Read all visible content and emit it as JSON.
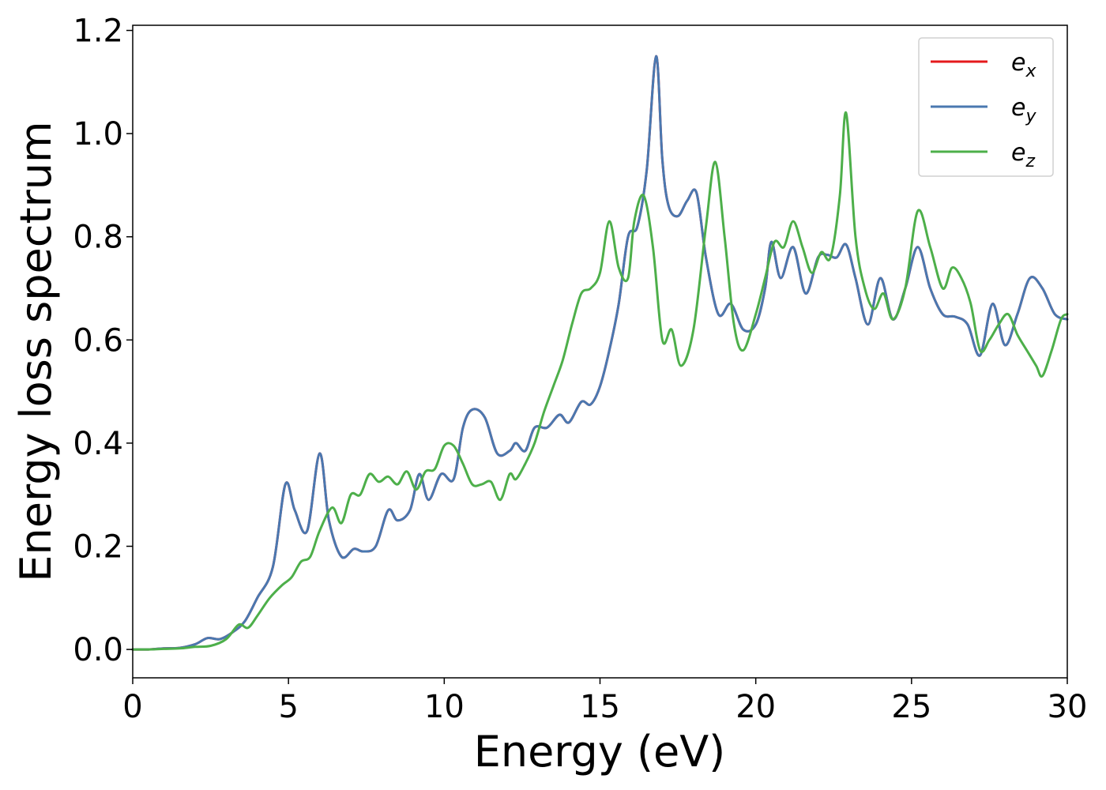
{
  "chart_data": {
    "type": "line",
    "xlabel": "Energy (eV)",
    "ylabel": "Energy loss spectrum",
    "xlim": [
      0,
      30
    ],
    "ylim": [
      -0.055,
      1.21
    ],
    "xticks": [
      0,
      5,
      10,
      15,
      20,
      25,
      30
    ],
    "yticks": [
      0.0,
      0.2,
      0.4,
      0.6,
      0.8,
      1.0,
      1.2
    ],
    "xtick_labels": [
      "0",
      "5",
      "10",
      "15",
      "20",
      "25",
      "30"
    ],
    "ytick_labels": [
      "0.0",
      "0.2",
      "0.4",
      "0.6",
      "0.8",
      "1.0",
      "1.2"
    ],
    "grid": false,
    "legend_position": "top-right",
    "series": [
      {
        "name": "e",
        "subscript": "x",
        "color": "#e41a1c",
        "x": [
          0,
          0.5,
          1.0,
          1.5,
          2.0,
          2.4,
          2.8,
          3.2,
          3.6,
          4.0,
          4.5,
          4.9,
          5.2,
          5.6,
          6.0,
          6.3,
          6.7,
          7.1,
          7.4,
          7.8,
          8.2,
          8.5,
          8.9,
          9.2,
          9.5,
          9.9,
          10.3,
          10.6,
          10.9,
          11.3,
          11.7,
          12.1,
          12.3,
          12.6,
          12.9,
          13.3,
          13.7,
          14.0,
          14.4,
          14.7,
          15.0,
          15.3,
          15.6,
          15.9,
          16.2,
          16.5,
          16.8,
          17.0,
          17.2,
          17.5,
          17.8,
          18.1,
          18.4,
          18.8,
          19.2,
          19.6,
          20.0,
          20.3,
          20.5,
          20.8,
          21.2,
          21.6,
          22.0,
          22.3,
          22.6,
          22.9,
          23.2,
          23.6,
          24.0,
          24.4,
          24.8,
          25.2,
          25.6,
          26.0,
          26.4,
          26.8,
          27.2,
          27.6,
          28.0,
          28.4,
          28.8,
          29.2,
          29.6,
          30.0
        ],
        "y": [
          0.0,
          0.0,
          0.002,
          0.003,
          0.01,
          0.022,
          0.02,
          0.033,
          0.055,
          0.1,
          0.16,
          0.32,
          0.27,
          0.23,
          0.38,
          0.25,
          0.18,
          0.195,
          0.19,
          0.2,
          0.27,
          0.25,
          0.27,
          0.34,
          0.29,
          0.34,
          0.33,
          0.43,
          0.465,
          0.45,
          0.38,
          0.385,
          0.4,
          0.385,
          0.43,
          0.43,
          0.455,
          0.44,
          0.48,
          0.475,
          0.51,
          0.58,
          0.67,
          0.8,
          0.82,
          0.93,
          1.15,
          0.95,
          0.86,
          0.84,
          0.87,
          0.885,
          0.76,
          0.65,
          0.67,
          0.62,
          0.63,
          0.7,
          0.79,
          0.72,
          0.78,
          0.69,
          0.76,
          0.765,
          0.76,
          0.785,
          0.72,
          0.63,
          0.72,
          0.64,
          0.7,
          0.78,
          0.7,
          0.65,
          0.645,
          0.63,
          0.57,
          0.67,
          0.59,
          0.65,
          0.72,
          0.7,
          0.65,
          0.64
        ]
      },
      {
        "name": "e",
        "subscript": "y",
        "color": "#4a78b0",
        "x": [
          0,
          0.5,
          1.0,
          1.5,
          2.0,
          2.4,
          2.8,
          3.2,
          3.6,
          4.0,
          4.5,
          4.9,
          5.2,
          5.6,
          6.0,
          6.3,
          6.7,
          7.1,
          7.4,
          7.8,
          8.2,
          8.5,
          8.9,
          9.2,
          9.5,
          9.9,
          10.3,
          10.6,
          10.9,
          11.3,
          11.7,
          12.1,
          12.3,
          12.6,
          12.9,
          13.3,
          13.7,
          14.0,
          14.4,
          14.7,
          15.0,
          15.3,
          15.6,
          15.9,
          16.2,
          16.5,
          16.8,
          17.0,
          17.2,
          17.5,
          17.8,
          18.1,
          18.4,
          18.8,
          19.2,
          19.6,
          20.0,
          20.3,
          20.5,
          20.8,
          21.2,
          21.6,
          22.0,
          22.3,
          22.6,
          22.9,
          23.2,
          23.6,
          24.0,
          24.4,
          24.8,
          25.2,
          25.6,
          26.0,
          26.4,
          26.8,
          27.2,
          27.6,
          28.0,
          28.4,
          28.8,
          29.2,
          29.6,
          30.0
        ],
        "y": [
          0.0,
          0.0,
          0.002,
          0.003,
          0.01,
          0.022,
          0.02,
          0.033,
          0.055,
          0.1,
          0.16,
          0.32,
          0.27,
          0.23,
          0.38,
          0.25,
          0.18,
          0.195,
          0.19,
          0.2,
          0.27,
          0.25,
          0.27,
          0.34,
          0.29,
          0.34,
          0.33,
          0.43,
          0.465,
          0.45,
          0.38,
          0.385,
          0.4,
          0.385,
          0.43,
          0.43,
          0.455,
          0.44,
          0.48,
          0.475,
          0.51,
          0.58,
          0.67,
          0.8,
          0.82,
          0.93,
          1.15,
          0.95,
          0.86,
          0.84,
          0.87,
          0.885,
          0.76,
          0.65,
          0.67,
          0.62,
          0.63,
          0.7,
          0.79,
          0.72,
          0.78,
          0.69,
          0.76,
          0.765,
          0.76,
          0.785,
          0.72,
          0.63,
          0.72,
          0.64,
          0.7,
          0.78,
          0.7,
          0.65,
          0.645,
          0.63,
          0.57,
          0.67,
          0.59,
          0.65,
          0.72,
          0.7,
          0.65,
          0.64
        ]
      },
      {
        "name": "e",
        "subscript": "z",
        "color": "#4daf4a",
        "x": [
          0,
          0.5,
          1.0,
          1.5,
          2.0,
          2.5,
          3.0,
          3.4,
          3.7,
          4.0,
          4.4,
          4.8,
          5.1,
          5.4,
          5.7,
          6.0,
          6.4,
          6.7,
          7.0,
          7.3,
          7.6,
          7.9,
          8.2,
          8.5,
          8.8,
          9.1,
          9.4,
          9.7,
          10.0,
          10.3,
          10.6,
          10.9,
          11.2,
          11.5,
          11.8,
          12.1,
          12.3,
          12.6,
          12.9,
          13.2,
          13.5,
          13.8,
          14.1,
          14.4,
          14.7,
          15.0,
          15.3,
          15.6,
          15.9,
          16.1,
          16.4,
          16.7,
          17.0,
          17.3,
          17.6,
          18.0,
          18.4,
          18.7,
          19.0,
          19.3,
          19.6,
          20.0,
          20.3,
          20.6,
          20.9,
          21.2,
          21.5,
          21.8,
          22.1,
          22.4,
          22.7,
          22.9,
          23.2,
          23.5,
          23.8,
          24.1,
          24.4,
          24.8,
          25.2,
          25.6,
          26.0,
          26.3,
          26.6,
          26.9,
          27.2,
          27.5,
          27.8,
          28.1,
          28.4,
          28.7,
          29.0,
          29.2,
          29.5,
          29.8,
          30.0
        ],
        "y": [
          0.0,
          0.0,
          0.001,
          0.002,
          0.005,
          0.007,
          0.02,
          0.048,
          0.042,
          0.065,
          0.1,
          0.125,
          0.14,
          0.17,
          0.18,
          0.23,
          0.275,
          0.245,
          0.3,
          0.3,
          0.34,
          0.325,
          0.335,
          0.32,
          0.345,
          0.31,
          0.345,
          0.35,
          0.395,
          0.395,
          0.36,
          0.32,
          0.32,
          0.325,
          0.29,
          0.34,
          0.33,
          0.36,
          0.4,
          0.46,
          0.51,
          0.56,
          0.63,
          0.69,
          0.7,
          0.73,
          0.83,
          0.74,
          0.72,
          0.83,
          0.88,
          0.78,
          0.6,
          0.62,
          0.55,
          0.62,
          0.82,
          0.945,
          0.8,
          0.63,
          0.58,
          0.65,
          0.72,
          0.79,
          0.78,
          0.83,
          0.78,
          0.73,
          0.77,
          0.76,
          0.88,
          1.04,
          0.8,
          0.7,
          0.66,
          0.69,
          0.64,
          0.7,
          0.85,
          0.78,
          0.7,
          0.74,
          0.72,
          0.67,
          0.58,
          0.6,
          0.63,
          0.65,
          0.61,
          0.58,
          0.55,
          0.53,
          0.58,
          0.64,
          0.65
        ]
      }
    ]
  }
}
